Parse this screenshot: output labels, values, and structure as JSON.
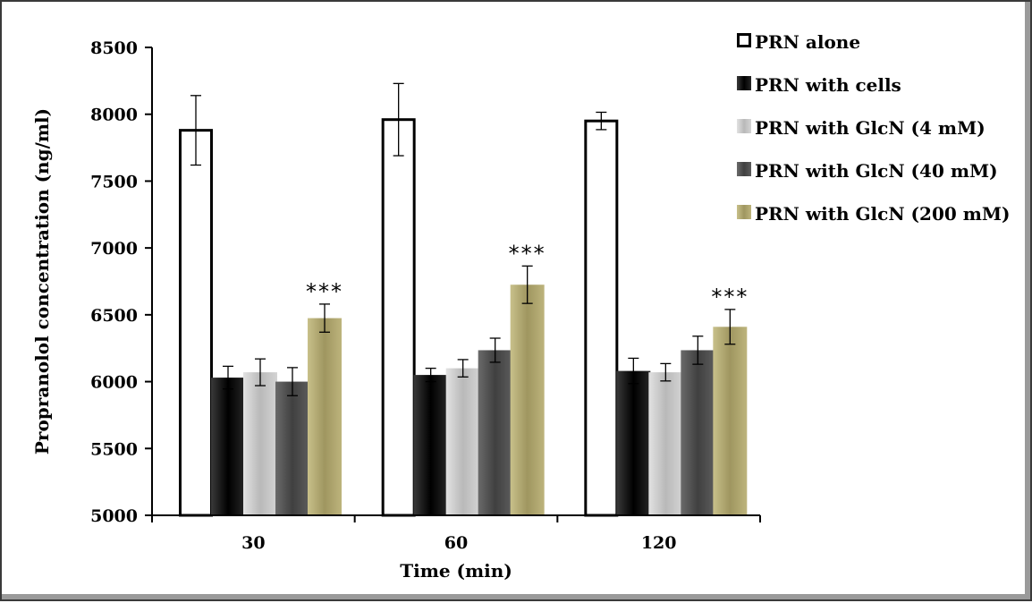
{
  "chart_data": {
    "type": "bar",
    "xlabel": "Time (min)",
    "ylabel": "Propranolol concentration (ng/ml)",
    "ylim": [
      5000,
      8500
    ],
    "yticks": [
      5000,
      5500,
      6000,
      6500,
      7000,
      7500,
      8000,
      8500
    ],
    "ytick_labels": [
      "5000",
      "5500",
      "6000",
      "6500",
      "7000",
      "7500",
      "8000",
      "8500"
    ],
    "categories": [
      "30",
      "60",
      "120"
    ],
    "legend_position": "right",
    "grid": false,
    "series": [
      {
        "name": "PRN alone",
        "color": "#ffffff",
        "stroke": "#000000",
        "values": [
          7880,
          7960,
          7950
        ],
        "errors": [
          260,
          270,
          65
        ]
      },
      {
        "name": "PRN with cells",
        "color": "#111111",
        "values": [
          6030,
          6050,
          6080
        ],
        "errors": [
          85,
          50,
          95
        ]
      },
      {
        "name": "PRN with GlcN (4 mM)",
        "color": "#c4c4c4",
        "values": [
          6070,
          6100,
          6070
        ],
        "errors": [
          100,
          65,
          65
        ]
      },
      {
        "name": "PRN with GlcN (40 mM)",
        "color": "#505050",
        "values": [
          6000,
          6235,
          6235
        ],
        "errors": [
          105,
          90,
          105
        ]
      },
      {
        "name": "PRN with GlcN (200 mM)",
        "color": "#aba26a",
        "values": [
          6475,
          6725,
          6410
        ],
        "errors": [
          105,
          140,
          130
        ]
      }
    ],
    "annotations": [
      {
        "category": "30",
        "series": "PRN with GlcN (200 mM)",
        "text": "***"
      },
      {
        "category": "60",
        "series": "PRN with GlcN (200 mM)",
        "text": "***"
      },
      {
        "category": "120",
        "series": "PRN with GlcN (200 mM)",
        "text": "***"
      }
    ]
  }
}
